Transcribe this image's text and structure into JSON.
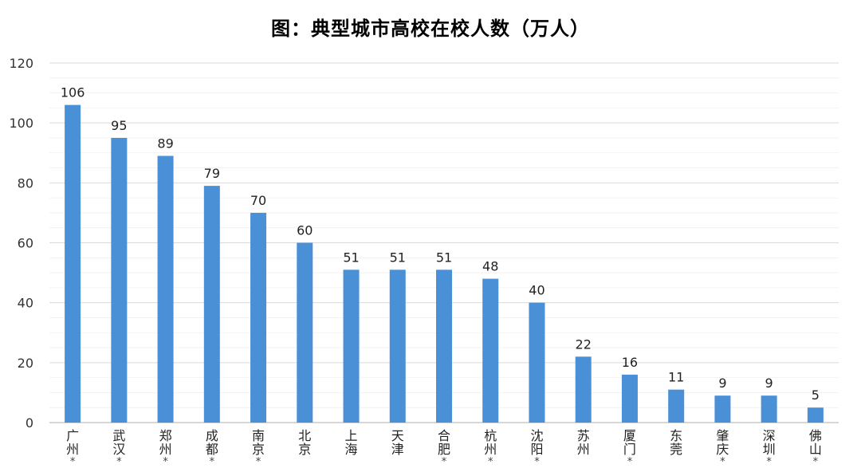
{
  "chart_data": {
    "type": "bar",
    "title": "图：典型城市高校在校人数（万人）",
    "categories": [
      "广州*",
      "武汉*",
      "郑州*",
      "成都*",
      "南京*",
      "北京",
      "上海",
      "天津",
      "合肥*",
      "杭州*",
      "沈阳*",
      "苏州",
      "厦门*",
      "东莞",
      "肇庆*",
      "深圳*",
      "佛山*"
    ],
    "values": [
      106,
      95,
      89,
      79,
      70,
      60,
      51,
      51,
      51,
      48,
      40,
      22,
      16,
      11,
      9,
      9,
      5
    ],
    "data_labels": [
      "106",
      "95",
      "89",
      "79",
      "70",
      "60",
      "51",
      "51",
      "51",
      "48",
      "40",
      "22",
      "16",
      "11",
      "9",
      "9",
      "5"
    ],
    "y_ticks": [
      "0",
      "20",
      "40",
      "60",
      "80",
      "100",
      "120"
    ],
    "ylim": [
      0,
      120
    ],
    "xlabel": "",
    "ylabel": "",
    "grid": true,
    "legend": "none",
    "colors": {
      "bar": "#4a90d6",
      "grid": "#d9d9d9",
      "axis": "#bfbfbf"
    }
  }
}
